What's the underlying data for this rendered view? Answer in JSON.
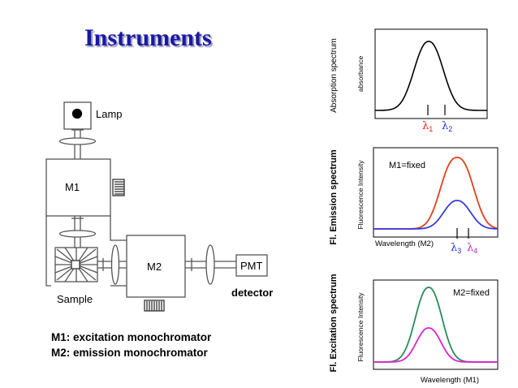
{
  "title": "Instruments",
  "legend": {
    "m1": "M1: excitation monochromator",
    "m2": "M2: emission monochromator"
  },
  "diagram": {
    "lamp": "Lamp",
    "m1": "M1",
    "m2": "M2",
    "pmt": "PMT",
    "sample": "Sample",
    "detector": "detector"
  },
  "panels": {
    "absorption": {
      "side_label": "Absorption spectrum",
      "ylabel": "absorbance",
      "markers": [
        {
          "symbol": "λ",
          "sub": "1",
          "color": "#e02020"
        },
        {
          "symbol": "λ",
          "sub": "2",
          "color": "#2030d0"
        }
      ]
    },
    "emission": {
      "side_label": "Fl. Emission spectrum",
      "ylabel": "Fluorescence Intensity",
      "xlabel": "Wavelength (M2)",
      "note": "M1=fixed",
      "markers": [
        {
          "symbol": "λ",
          "sub": "3",
          "color": "#2030d0"
        },
        {
          "symbol": "λ",
          "sub": "4",
          "color": "#c020c0"
        }
      ]
    },
    "excitation": {
      "side_label": "Fl. Excitation spectrum",
      "ylabel": "Fluorescence Intensity",
      "xlabel": "Wavelength (M1)",
      "note": "M2=fixed"
    }
  },
  "colors": {
    "title": "#1a1aa0",
    "curve_black": "#000000",
    "curve_red": "#e0401a",
    "curve_blue": "#3a3ae0",
    "curve_green": "#2a8a5a",
    "curve_magenta": "#e020d0",
    "optics": "#555555"
  }
}
